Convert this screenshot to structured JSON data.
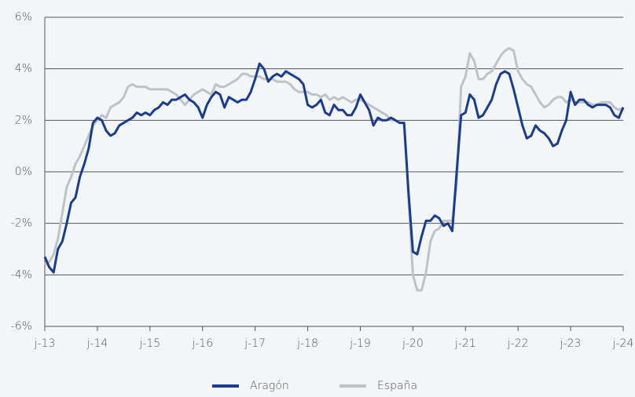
{
  "chart_data": {
    "type": "line",
    "categories": [
      "j-13",
      null,
      null,
      null,
      null,
      null,
      null,
      null,
      null,
      null,
      null,
      null,
      "j-14",
      null,
      null,
      null,
      null,
      null,
      null,
      null,
      null,
      null,
      null,
      null,
      "j-15",
      null,
      null,
      null,
      null,
      null,
      null,
      null,
      null,
      null,
      null,
      null,
      "j-16",
      null,
      null,
      null,
      null,
      null,
      null,
      null,
      null,
      null,
      null,
      null,
      "j-17",
      null,
      null,
      null,
      null,
      null,
      null,
      null,
      null,
      null,
      null,
      null,
      "j-18",
      null,
      null,
      null,
      null,
      null,
      null,
      null,
      null,
      null,
      null,
      null,
      "j-19",
      null,
      null,
      null,
      null,
      null,
      null,
      null,
      null,
      null,
      null,
      null,
      "j-20",
      null,
      null,
      null,
      null,
      null,
      null,
      null,
      null,
      null,
      null,
      null,
      "j-21",
      null,
      null,
      null,
      null,
      null,
      null,
      null,
      null,
      null,
      null,
      null,
      "j-22",
      null,
      null,
      null,
      null,
      null,
      null,
      null,
      null,
      null,
      null,
      null,
      "j-23",
      null,
      null,
      null,
      null,
      null,
      null,
      null,
      null,
      null,
      null,
      null,
      "j-24"
    ],
    "series": [
      {
        "name": "Aragón",
        "color": "#1a3d8f",
        "values": [
          -3.3,
          -3.7,
          -3.9,
          -3.0,
          -2.7,
          -2.0,
          -1.2,
          -1.0,
          -0.2,
          0.3,
          0.9,
          1.9,
          2.1,
          2.0,
          1.6,
          1.4,
          1.5,
          1.8,
          1.9,
          2.0,
          2.1,
          2.3,
          2.2,
          2.3,
          2.2,
          2.4,
          2.5,
          2.7,
          2.6,
          2.8,
          2.8,
          2.9,
          3.0,
          2.8,
          2.7,
          2.5,
          2.1,
          2.6,
          2.9,
          3.1,
          3.0,
          2.5,
          2.9,
          2.8,
          2.7,
          2.8,
          2.8,
          3.1,
          3.6,
          4.2,
          4.0,
          3.5,
          3.7,
          3.8,
          3.7,
          3.9,
          3.8,
          3.7,
          3.6,
          3.4,
          2.6,
          2.5,
          2.6,
          2.8,
          2.3,
          2.2,
          2.6,
          2.4,
          2.4,
          2.2,
          2.2,
          2.5,
          3.0,
          2.7,
          2.4,
          1.8,
          2.1,
          2.0,
          2.0,
          2.1,
          2.0,
          1.9,
          1.9,
          -0.8,
          -3.1,
          -3.2,
          -2.5,
          -1.9,
          -1.9,
          -1.7,
          -1.8,
          -2.1,
          -2.0,
          -2.3,
          0.0,
          2.2,
          2.3,
          3.0,
          2.8,
          2.1,
          2.2,
          2.5,
          2.8,
          3.4,
          3.8,
          3.9,
          3.8,
          3.2,
          2.5,
          1.8,
          1.3,
          1.4,
          1.8,
          1.6,
          1.5,
          1.3,
          1.0,
          1.1,
          1.6,
          2.0,
          3.1,
          2.6,
          2.8,
          2.8,
          2.6,
          2.5,
          2.6,
          2.6,
          2.6,
          2.5,
          2.2,
          2.1,
          2.5
        ]
      },
      {
        "name": "España",
        "color": "#bfc3c7",
        "values": [
          -3.6,
          -3.5,
          -3.2,
          -2.6,
          -1.6,
          -0.6,
          -0.2,
          0.3,
          0.6,
          1.0,
          1.4,
          1.8,
          2.0,
          2.2,
          2.1,
          2.5,
          2.6,
          2.7,
          2.9,
          3.3,
          3.4,
          3.3,
          3.3,
          3.3,
          3.2,
          3.2,
          3.2,
          3.2,
          3.2,
          3.1,
          3.0,
          2.8,
          2.6,
          2.8,
          3.0,
          3.1,
          3.2,
          3.1,
          3.0,
          3.4,
          3.3,
          3.3,
          3.4,
          3.5,
          3.6,
          3.8,
          3.8,
          3.7,
          3.7,
          3.7,
          3.6,
          3.6,
          3.6,
          3.5,
          3.5,
          3.5,
          3.4,
          3.2,
          3.1,
          3.1,
          3.1,
          3.0,
          3.0,
          2.9,
          3.0,
          2.8,
          2.9,
          2.8,
          2.9,
          2.8,
          2.7,
          2.8,
          2.8,
          2.7,
          2.6,
          2.5,
          2.4,
          2.3,
          2.2,
          2.0,
          2.0,
          1.9,
          1.9,
          -1.0,
          -4.0,
          -4.6,
          -4.6,
          -3.9,
          -2.7,
          -2.3,
          -2.2,
          -1.9,
          -1.9,
          -1.9,
          -0.5,
          3.3,
          3.7,
          4.6,
          4.3,
          3.6,
          3.6,
          3.8,
          3.9,
          4.2,
          4.5,
          4.7,
          4.8,
          4.7,
          3.9,
          3.6,
          3.4,
          3.3,
          3.0,
          2.7,
          2.5,
          2.6,
          2.8,
          2.9,
          2.9,
          2.7,
          2.8,
          2.7,
          2.7,
          2.7,
          2.7,
          2.6,
          2.6,
          2.7,
          2.7,
          2.7,
          2.5,
          2.4,
          2.5
        ]
      }
    ],
    "ylim": [
      -6,
      6
    ],
    "yticks": [
      {
        "value": -6,
        "label": "-6%"
      },
      {
        "value": -4,
        "label": "-4%"
      },
      {
        "value": -2,
        "label": "-2%"
      },
      {
        "value": 0,
        "label": "0%"
      },
      {
        "value": 2,
        "label": "2%"
      },
      {
        "value": 4,
        "label": "4%"
      },
      {
        "value": 6,
        "label": "6%"
      }
    ],
    "grid": true,
    "legend": "bottom"
  }
}
